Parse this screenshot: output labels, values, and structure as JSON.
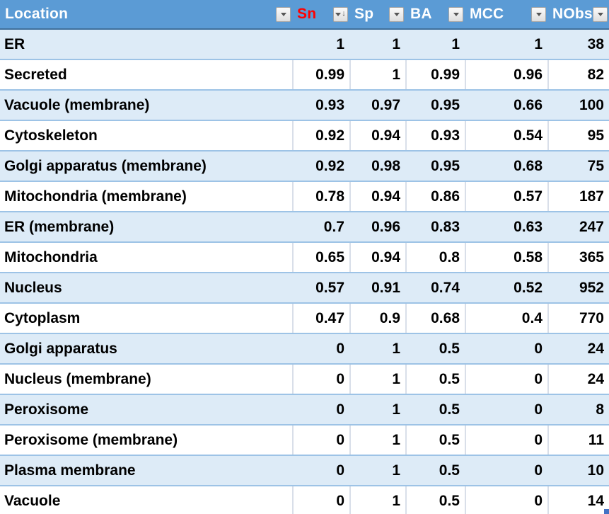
{
  "table": {
    "columns": [
      {
        "id": "location",
        "label": "Location",
        "align": "left",
        "red": false,
        "sorted": null
      },
      {
        "id": "sn",
        "label": "Sn",
        "align": "right",
        "red": true,
        "sorted": "desc"
      },
      {
        "id": "sp",
        "label": "Sp",
        "align": "right",
        "red": false,
        "sorted": null
      },
      {
        "id": "ba",
        "label": "BA",
        "align": "right",
        "red": false,
        "sorted": null
      },
      {
        "id": "mcc",
        "label": "MCC",
        "align": "right",
        "red": false,
        "sorted": null
      },
      {
        "id": "nobs",
        "label": "NObs",
        "align": "right",
        "red": false,
        "sorted": null
      }
    ],
    "rows": [
      {
        "location": "ER",
        "sn": "1",
        "sp": "1",
        "ba": "1",
        "mcc": "1",
        "nobs": "38"
      },
      {
        "location": "Secreted",
        "sn": "0.99",
        "sp": "1",
        "ba": "0.99",
        "mcc": "0.96",
        "nobs": "82"
      },
      {
        "location": "Vacuole (membrane)",
        "sn": "0.93",
        "sp": "0.97",
        "ba": "0.95",
        "mcc": "0.66",
        "nobs": "100"
      },
      {
        "location": "Cytoskeleton",
        "sn": "0.92",
        "sp": "0.94",
        "ba": "0.93",
        "mcc": "0.54",
        "nobs": "95"
      },
      {
        "location": "Golgi apparatus (membrane)",
        "sn": "0.92",
        "sp": "0.98",
        "ba": "0.95",
        "mcc": "0.68",
        "nobs": "75"
      },
      {
        "location": "Mitochondria (membrane)",
        "sn": "0.78",
        "sp": "0.94",
        "ba": "0.86",
        "mcc": "0.57",
        "nobs": "187"
      },
      {
        "location": "ER (membrane)",
        "sn": "0.7",
        "sp": "0.96",
        "ba": "0.83",
        "mcc": "0.63",
        "nobs": "247"
      },
      {
        "location": "Mitochondria",
        "sn": "0.65",
        "sp": "0.94",
        "ba": "0.8",
        "mcc": "0.58",
        "nobs": "365"
      },
      {
        "location": "Nucleus",
        "sn": "0.57",
        "sp": "0.91",
        "ba": "0.74",
        "mcc": "0.52",
        "nobs": "952"
      },
      {
        "location": "Cytoplasm",
        "sn": "0.47",
        "sp": "0.9",
        "ba": "0.68",
        "mcc": "0.4",
        "nobs": "770"
      },
      {
        "location": "Golgi apparatus",
        "sn": "0",
        "sp": "1",
        "ba": "0.5",
        "mcc": "0",
        "nobs": "24"
      },
      {
        "location": "Nucleus (membrane)",
        "sn": "0",
        "sp": "1",
        "ba": "0.5",
        "mcc": "0",
        "nobs": "24"
      },
      {
        "location": "Peroxisome",
        "sn": "0",
        "sp": "1",
        "ba": "0.5",
        "mcc": "0",
        "nobs": "8"
      },
      {
        "location": "Peroxisome (membrane)",
        "sn": "0",
        "sp": "1",
        "ba": "0.5",
        "mcc": "0",
        "nobs": "11"
      },
      {
        "location": "Plasma membrane",
        "sn": "0",
        "sp": "1",
        "ba": "0.5",
        "mcc": "0",
        "nobs": "10"
      },
      {
        "location": "Vacuole",
        "sn": "0",
        "sp": "1",
        "ba": "0.5",
        "mcc": "0",
        "nobs": "14"
      }
    ]
  },
  "icons": {
    "filter_dropdown": "dropdown-arrow-icon",
    "sort_descending": "sort-descending-icon"
  },
  "colors": {
    "header_bg": "#5B9BD5",
    "header_text": "#FFFFFF",
    "sn_text": "#FF0000",
    "band_bg": "#DDEBF7",
    "row_border": "#9DC3E6",
    "header_border": "#41719C",
    "cell_border": "#D9DFE9",
    "handle": "#4472C4"
  }
}
